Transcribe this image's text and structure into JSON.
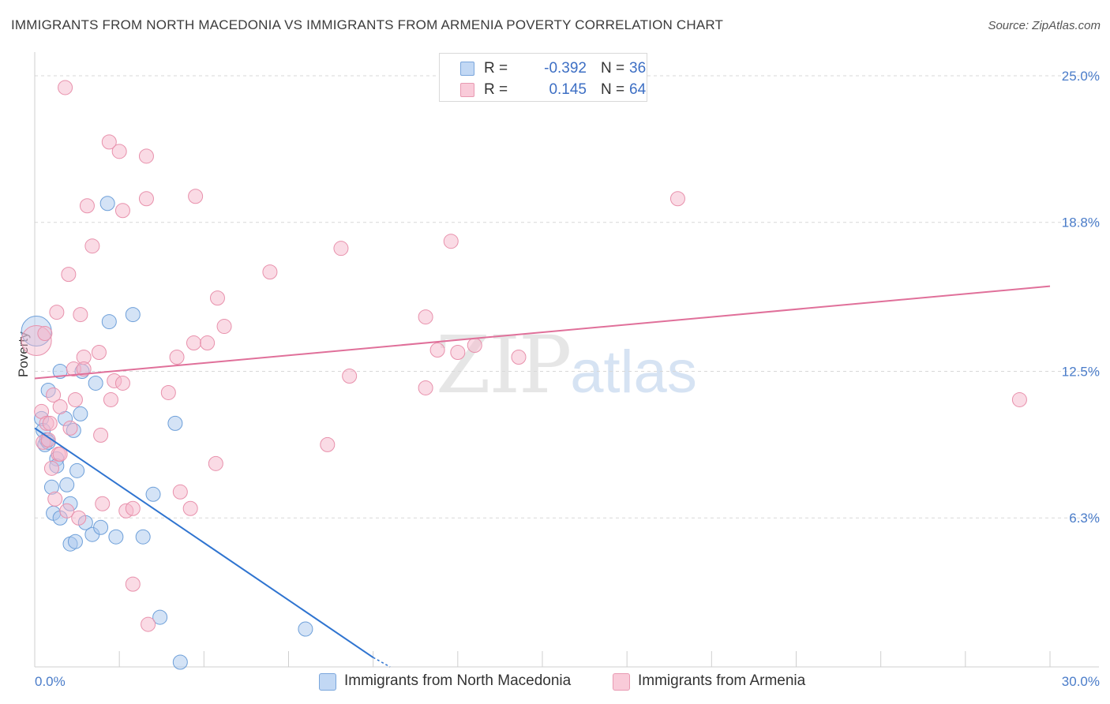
{
  "title": "IMMIGRANTS FROM NORTH MACEDONIA VS IMMIGRANTS FROM ARMENIA POVERTY CORRELATION CHART",
  "source": "Source: ZipAtlas.com",
  "watermark": {
    "zip": "ZIP",
    "atlas": "atlas"
  },
  "legend": {
    "rows": [
      {
        "r_label": "R =",
        "r_value": "-0.392",
        "n_label": "N =",
        "n_value": "36"
      },
      {
        "r_label": "R =",
        "r_value": "0.145",
        "n_label": "N =",
        "n_value": "64"
      }
    ]
  },
  "bottom_legend": [
    "Immigrants from North Macedonia",
    "Immigrants from Armenia"
  ],
  "colors": {
    "blue_fill": "#aac8ee",
    "blue_stroke": "#6d9fd9",
    "blue_line": "#2f74d0",
    "pink_fill": "#f5b8cb",
    "pink_stroke": "#e891ac",
    "pink_line": "#e0709a",
    "grid": "#d8d8d8",
    "axis_text": "#4a7cc9"
  },
  "chart_data": {
    "type": "scatter",
    "title": "IMMIGRANTS FROM NORTH MACEDONIA VS IMMIGRANTS FROM ARMENIA POVERTY CORRELATION CHART",
    "xlabel": "",
    "ylabel": "Poverty",
    "xlim": [
      0,
      30
    ],
    "ylim": [
      0,
      25.8
    ],
    "x_tick_labels": [
      "0.0%",
      "30.0%"
    ],
    "y_ticks": [
      6.3,
      12.5,
      18.8,
      25.0
    ],
    "y_tick_labels": [
      "6.3%",
      "12.5%",
      "18.8%",
      "25.0%"
    ],
    "grid": true,
    "legend_position": "top-center",
    "series": [
      {
        "name": "Immigrants from North Macedonia",
        "color": "blue",
        "r": -0.392,
        "n": 36,
        "trend": {
          "x": [
            0.0,
            10.0
          ],
          "y": [
            10.1,
            0.4
          ],
          "dashed_to": [
            10.5,
            0.0
          ]
        },
        "points": [
          [
            0.05,
            14.2
          ],
          [
            0.2,
            10.5
          ],
          [
            0.25,
            10.0
          ],
          [
            0.3,
            9.4
          ],
          [
            0.35,
            9.6
          ],
          [
            0.4,
            11.7
          ],
          [
            0.4,
            9.5
          ],
          [
            0.5,
            7.6
          ],
          [
            0.55,
            6.5
          ],
          [
            0.65,
            8.8
          ],
          [
            0.65,
            8.5
          ],
          [
            0.75,
            12.5
          ],
          [
            0.75,
            6.3
          ],
          [
            0.9,
            10.5
          ],
          [
            0.95,
            7.7
          ],
          [
            1.05,
            5.2
          ],
          [
            1.05,
            6.9
          ],
          [
            1.15,
            10.0
          ],
          [
            1.2,
            5.3
          ],
          [
            1.25,
            8.3
          ],
          [
            1.35,
            10.7
          ],
          [
            1.4,
            12.5
          ],
          [
            1.5,
            6.1
          ],
          [
            1.7,
            5.6
          ],
          [
            1.8,
            12.0
          ],
          [
            1.95,
            5.9
          ],
          [
            2.15,
            19.6
          ],
          [
            2.2,
            14.6
          ],
          [
            2.4,
            5.5
          ],
          [
            2.9,
            14.9
          ],
          [
            3.2,
            5.5
          ],
          [
            3.5,
            7.3
          ],
          [
            3.7,
            2.1
          ],
          [
            4.15,
            10.3
          ],
          [
            4.3,
            0.2
          ],
          [
            8.0,
            1.6
          ]
        ]
      },
      {
        "name": "Immigrants from Armenia",
        "color": "pink",
        "r": 0.145,
        "n": 64,
        "trend": {
          "x": [
            0.0,
            30.0
          ],
          "y": [
            12.2,
            16.1
          ]
        },
        "points": [
          [
            0.05,
            13.8
          ],
          [
            0.2,
            10.8
          ],
          [
            0.25,
            9.5
          ],
          [
            0.3,
            14.1
          ],
          [
            0.35,
            10.3
          ],
          [
            0.4,
            9.6
          ],
          [
            0.45,
            10.3
          ],
          [
            0.5,
            8.4
          ],
          [
            0.55,
            11.5
          ],
          [
            0.6,
            7.1
          ],
          [
            0.65,
            15.0
          ],
          [
            0.7,
            9.0
          ],
          [
            0.75,
            11.0
          ],
          [
            0.75,
            9.0
          ],
          [
            0.9,
            24.5
          ],
          [
            0.95,
            6.6
          ],
          [
            1.0,
            16.6
          ],
          [
            1.05,
            10.1
          ],
          [
            1.15,
            12.6
          ],
          [
            1.2,
            11.3
          ],
          [
            1.3,
            6.3
          ],
          [
            1.35,
            14.9
          ],
          [
            1.45,
            13.1
          ],
          [
            1.45,
            12.6
          ],
          [
            1.55,
            19.5
          ],
          [
            1.7,
            17.8
          ],
          [
            1.9,
            13.3
          ],
          [
            1.95,
            9.8
          ],
          [
            2.0,
            6.9
          ],
          [
            2.2,
            22.2
          ],
          [
            2.25,
            11.3
          ],
          [
            2.35,
            12.1
          ],
          [
            2.5,
            21.8
          ],
          [
            2.6,
            12.0
          ],
          [
            2.6,
            19.3
          ],
          [
            2.7,
            6.6
          ],
          [
            2.9,
            6.7
          ],
          [
            2.9,
            3.5
          ],
          [
            3.3,
            21.6
          ],
          [
            3.3,
            19.8
          ],
          [
            3.35,
            1.8
          ],
          [
            3.95,
            11.6
          ],
          [
            4.2,
            13.1
          ],
          [
            4.3,
            7.4
          ],
          [
            4.6,
            6.7
          ],
          [
            4.7,
            13.7
          ],
          [
            4.75,
            19.9
          ],
          [
            5.1,
            13.7
          ],
          [
            5.35,
            8.6
          ],
          [
            5.4,
            15.6
          ],
          [
            5.6,
            14.4
          ],
          [
            6.95,
            16.7
          ],
          [
            8.65,
            9.4
          ],
          [
            9.05,
            17.7
          ],
          [
            9.3,
            12.3
          ],
          [
            11.55,
            14.8
          ],
          [
            11.55,
            11.8
          ],
          [
            11.9,
            13.4
          ],
          [
            12.3,
            18.0
          ],
          [
            12.5,
            13.3
          ],
          [
            13.0,
            13.6
          ],
          [
            14.3,
            13.1
          ],
          [
            19.0,
            19.8
          ],
          [
            29.1,
            11.3
          ]
        ]
      }
    ]
  }
}
